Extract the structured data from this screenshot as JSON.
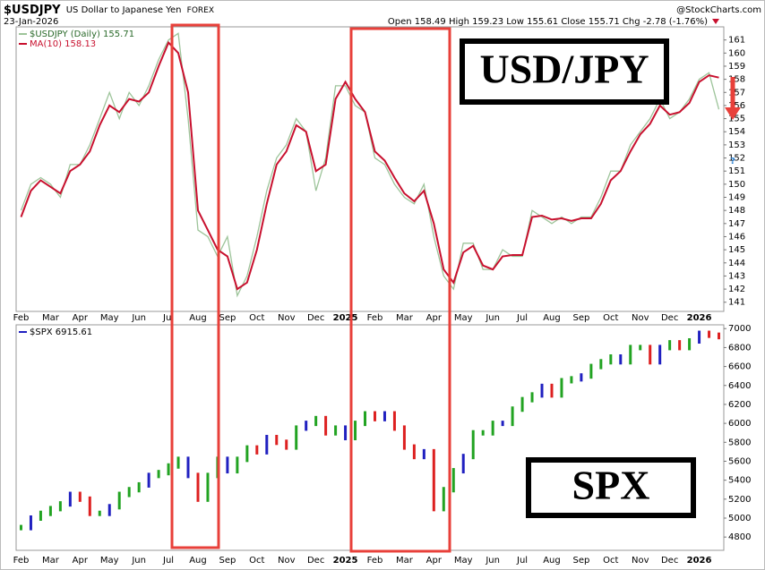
{
  "chart_data": [
    {
      "type": "line",
      "title": "$USDJPY",
      "subtitle": "US Dollar to Japanese Yen",
      "exchange": "FOREX",
      "date": "23-Jan-2026",
      "quote": "Open 158.49  High 159.23  Low 155.61  Close 155.71  Chg -2.78 (-1.76%)",
      "watermark": "@StockCharts.com",
      "annotations": [
        "USD/JPY",
        "?"
      ],
      "categories": [
        "Feb",
        null,
        null,
        "Mar",
        null,
        null,
        "Apr",
        null,
        null,
        "May",
        null,
        null,
        "Jun",
        null,
        null,
        "Jul",
        null,
        null,
        "Aug",
        null,
        null,
        "Sep",
        null,
        null,
        "Oct",
        null,
        null,
        "Nov",
        null,
        null,
        "Dec",
        null,
        null,
        "2025",
        null,
        null,
        "Feb",
        null,
        null,
        "Mar",
        null,
        null,
        "Apr",
        null,
        null,
        "May",
        null,
        null,
        "Jun",
        null,
        null,
        "Jul",
        null,
        null,
        "Aug",
        null,
        null,
        "Sep",
        null,
        null,
        "Oct",
        null,
        null,
        "Nov",
        null,
        null,
        "Dec",
        null,
        null,
        "2026",
        null,
        null
      ],
      "series": [
        {
          "name": "$USDJPY (Daily) 155.71",
          "color": "#9dc49a",
          "values": [
            148,
            150,
            150.5,
            150,
            149,
            151.5,
            151.5,
            153,
            155,
            157,
            155,
            157,
            156,
            157.5,
            159.5,
            161,
            161.5,
            155,
            146.5,
            146,
            144.5,
            146,
            141.5,
            143,
            146,
            149.5,
            152,
            153,
            155,
            154,
            149.5,
            152,
            157.5,
            157.5,
            156,
            155.5,
            152,
            151.5,
            150,
            149,
            148.5,
            150,
            146,
            143,
            142,
            145.5,
            145.5,
            143.5,
            143.5,
            145,
            144.5,
            144.5,
            148,
            147.5,
            147,
            147.5,
            147,
            147.5,
            147.5,
            149,
            151,
            151,
            153,
            154,
            155,
            156.5,
            155,
            155.5,
            156.5,
            158,
            158.5,
            155.71
          ]
        },
        {
          "name": "MA(10) 158.13",
          "color": "#c8102e",
          "values": [
            147.5,
            149.5,
            150.3,
            149.8,
            149.3,
            151,
            151.5,
            152.5,
            154.5,
            156,
            155.5,
            156.5,
            156.3,
            157,
            159,
            160.8,
            160,
            157,
            148,
            146.5,
            145,
            144.5,
            142,
            142.5,
            145,
            148.5,
            151.5,
            152.5,
            154.5,
            154,
            151,
            151.5,
            156.5,
            157.8,
            156.5,
            155.5,
            152.5,
            151.8,
            150.5,
            149.3,
            148.7,
            149.5,
            147,
            143.5,
            142.5,
            144.8,
            145.3,
            143.8,
            143.5,
            144.5,
            144.6,
            144.6,
            147.5,
            147.6,
            147.3,
            147.4,
            147.2,
            147.4,
            147.4,
            148.5,
            150.3,
            151,
            152.5,
            153.8,
            154.6,
            156,
            155.3,
            155.5,
            156.2,
            157.8,
            158.3,
            158.13
          ]
        }
      ],
      "ylim": [
        140.3,
        162
      ],
      "yticks": [
        141,
        142,
        143,
        144,
        145,
        146,
        147,
        148,
        149,
        150,
        151,
        152,
        153,
        154,
        155,
        156,
        157,
        158,
        159,
        160,
        161
      ]
    },
    {
      "type": "price_bars",
      "annotations": [
        "SPX"
      ],
      "up_color": "#22a322",
      "down_color": "#dd2020",
      "categories": [
        "Feb",
        null,
        null,
        "Mar",
        null,
        null,
        "Apr",
        null,
        null,
        "May",
        null,
        null,
        "Jun",
        null,
        null,
        "Jul",
        null,
        null,
        "Aug",
        null,
        null,
        "Sep",
        null,
        null,
        "Oct",
        null,
        null,
        "Nov",
        null,
        null,
        "Dec",
        null,
        null,
        "2025",
        null,
        null,
        "Feb",
        null,
        null,
        "Mar",
        null,
        null,
        "Apr",
        null,
        null,
        "May",
        null,
        null,
        "Jun",
        null,
        null,
        "Jul",
        null,
        null,
        "Aug",
        null,
        null,
        "Sep",
        null,
        null,
        "Oct",
        null,
        null,
        "Nov",
        null,
        null,
        "Dec",
        null,
        null,
        "2026",
        null,
        null
      ],
      "series": [
        {
          "name": "$SPX 6915.61",
          "color": "#2020c0",
          "values": [
            4900,
            5000,
            5050,
            5100,
            5150,
            5250,
            5200,
            5050,
            5050,
            5120,
            5250,
            5300,
            5350,
            5450,
            5480,
            5550,
            5620,
            5450,
            5200,
            5450,
            5620,
            5500,
            5620,
            5740,
            5700,
            5850,
            5800,
            5750,
            5950,
            6000,
            6050,
            5900,
            5950,
            5850,
            6000,
            6100,
            6050,
            6100,
            5950,
            5750,
            5650,
            5700,
            5100,
            5300,
            5500,
            5650,
            5900,
            5900,
            6000,
            6000,
            6150,
            6250,
            6300,
            6390,
            6300,
            6450,
            6470,
            6500,
            6600,
            6650,
            6700,
            6650,
            6800,
            6800,
            6650,
            6800,
            6850,
            6800,
            6870,
            6950,
            6930,
            6915.61
          ]
        }
      ],
      "ylim": [
        4660,
        7040
      ],
      "yticks": [
        4800,
        5000,
        5200,
        5400,
        5600,
        5800,
        6000,
        6200,
        6400,
        6600,
        6800,
        7000
      ]
    }
  ]
}
